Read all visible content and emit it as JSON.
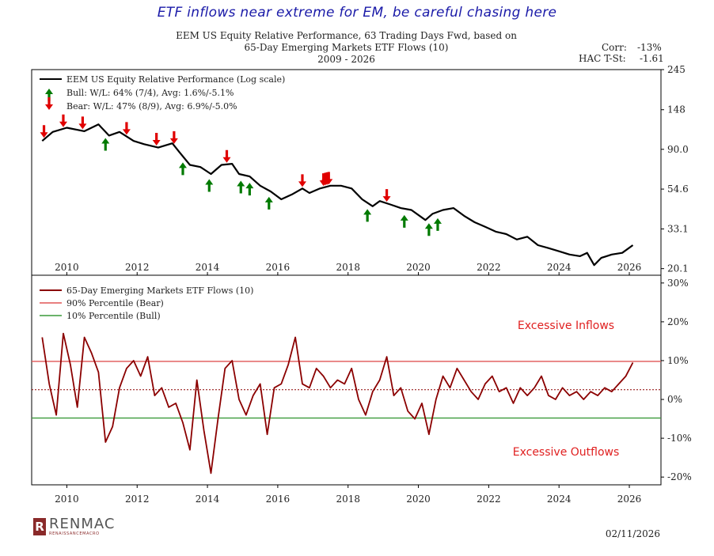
{
  "headline": "ETF inflows near extreme for EM, be careful chasing here",
  "title_line1": "EEM US Equity Relative Performance, 63 Trading Days Fwd, based on",
  "title_line2": "65-Day Emerging Markets ETF Flows (10)",
  "title_line3": "2009 - 2026",
  "corr_label": "Corr:",
  "corr_value": "-13%",
  "hac_label": "HAC T-St:",
  "hac_value": "-1.61",
  "logo": {
    "mark": "R",
    "name": "RENMAC",
    "sub": "RENAISSANCEMACRO"
  },
  "date": "02/11/2026",
  "colors": {
    "price": "#000000",
    "flows": "#8b0000",
    "bear": "#e05555",
    "bull": "#3a9a3a",
    "bear_arrow": "#e00000",
    "bull_arrow": "#007a00",
    "annotation": "#e02020",
    "median": "#8b0000"
  },
  "chart_data": [
    {
      "type": "line",
      "panel": "top",
      "scale": "log",
      "xlim": [
        2009.0,
        2026.9
      ],
      "ylim": [
        18.5,
        245
      ],
      "y_ticks": [
        20.1,
        33.1,
        54.6,
        90.0,
        148,
        245
      ],
      "y_tick_labels": [
        "20.1",
        "33.1",
        "54.6",
        "90.0",
        "148",
        "245"
      ],
      "x_ticks": [
        2010,
        2012,
        2014,
        2016,
        2018,
        2020,
        2022,
        2024,
        2026
      ],
      "x_tick_labels": [
        "2010",
        "2012",
        "2014",
        "2016",
        "2018",
        "2020",
        "2022",
        "2024",
        "2026"
      ],
      "legend": [
        "EEM US Equity Relative Performance (Log scale)",
        "Bull:  W/L: 64% (7/4), Avg: 1.6%/-5.1%",
        "Bear:  W/L: 47% (8/9), Avg: 6.9%/-5.0%"
      ],
      "series": [
        {
          "name": "EEM US Equity Relative Performance (Log scale)",
          "x": [
            2009.3,
            2009.6,
            2010.0,
            2010.5,
            2010.9,
            2011.2,
            2011.5,
            2011.9,
            2012.2,
            2012.6,
            2013.0,
            2013.2,
            2013.5,
            2013.8,
            2014.1,
            2014.4,
            2014.7,
            2014.9,
            2015.2,
            2015.5,
            2015.8,
            2016.1,
            2016.4,
            2016.7,
            2016.9,
            2017.2,
            2017.5,
            2017.8,
            2018.1,
            2018.4,
            2018.7,
            2018.9,
            2019.2,
            2019.5,
            2019.8,
            2020.2,
            2020.4,
            2020.7,
            2021.0,
            2021.3,
            2021.6,
            2021.9,
            2022.2,
            2022.5,
            2022.8,
            2023.1,
            2023.4,
            2023.7,
            2024.0,
            2024.3,
            2024.6,
            2024.8,
            2025.0,
            2025.2,
            2025.5,
            2025.8,
            2026.1
          ],
          "values": [
            100,
            112,
            118,
            113,
            123,
            107,
            112,
            100,
            96,
            92,
            97,
            87,
            74,
            72,
            66,
            74,
            75,
            66,
            64,
            57,
            53,
            48,
            51,
            55,
            52,
            55,
            57,
            57,
            55,
            48,
            44,
            47,
            45,
            43,
            42,
            37,
            40,
            42,
            43,
            39,
            36,
            34,
            32,
            31,
            29,
            30,
            27,
            26,
            25,
            24,
            23.5,
            24.5,
            21,
            23,
            24,
            24.5,
            27
          ]
        }
      ],
      "bear_signal_x": [
        2009.35,
        2009.9,
        2010.45,
        2011.7,
        2012.55,
        2013.05,
        2014.55,
        2016.7,
        2017.3,
        2017.35,
        2017.4,
        2017.45,
        2019.1
      ],
      "bull_signal_x": [
        2011.1,
        2013.3,
        2014.05,
        2014.95,
        2015.2,
        2015.75,
        2018.55,
        2019.6,
        2020.3,
        2020.55
      ]
    },
    {
      "type": "line",
      "panel": "bottom",
      "xlim": [
        2009.0,
        2026.9
      ],
      "ylim": [
        -22,
        32
      ],
      "y_ticks": [
        -20,
        -10,
        0,
        10,
        20,
        30
      ],
      "y_tick_labels": [
        "-20%",
        "-10%",
        "0%",
        "10%",
        "20%",
        "30%"
      ],
      "x_ticks": [
        2010,
        2012,
        2014,
        2016,
        2018,
        2020,
        2022,
        2024,
        2026
      ],
      "x_tick_labels": [
        "2010",
        "2012",
        "2014",
        "2016",
        "2018",
        "2020",
        "2022",
        "2024",
        "2026"
      ],
      "legend": [
        "65-Day Emerging Markets ETF Flows (10)",
        "90% Percentile (Bear)",
        "10% Percentile (Bull)"
      ],
      "bear_threshold": 9.8,
      "bull_threshold": -4.8,
      "median": 2.5,
      "annotations": [
        "Excessive Inflows",
        "Excessive Outflows"
      ],
      "series": [
        {
          "name": "65-Day Emerging Markets ETF Flows (10)",
          "x": [
            2009.3,
            2009.5,
            2009.7,
            2009.9,
            2010.1,
            2010.3,
            2010.5,
            2010.7,
            2010.9,
            2011.1,
            2011.3,
            2011.5,
            2011.7,
            2011.9,
            2012.1,
            2012.3,
            2012.5,
            2012.7,
            2012.9,
            2013.1,
            2013.3,
            2013.5,
            2013.7,
            2013.9,
            2014.1,
            2014.3,
            2014.5,
            2014.7,
            2014.9,
            2015.1,
            2015.3,
            2015.5,
            2015.7,
            2015.9,
            2016.1,
            2016.3,
            2016.5,
            2016.7,
            2016.9,
            2017.1,
            2017.3,
            2017.5,
            2017.7,
            2017.9,
            2018.1,
            2018.3,
            2018.5,
            2018.7,
            2018.9,
            2019.1,
            2019.3,
            2019.5,
            2019.7,
            2019.9,
            2020.1,
            2020.3,
            2020.5,
            2020.7,
            2020.9,
            2021.1,
            2021.3,
            2021.5,
            2021.7,
            2021.9,
            2022.1,
            2022.3,
            2022.5,
            2022.7,
            2022.9,
            2023.1,
            2023.3,
            2023.5,
            2023.7,
            2023.9,
            2024.1,
            2024.3,
            2024.5,
            2024.7,
            2024.9,
            2025.1,
            2025.3,
            2025.5,
            2025.7,
            2025.9,
            2026.1
          ],
          "values": [
            16,
            4,
            -4,
            17,
            9,
            -2,
            16,
            12,
            7,
            -11,
            -7,
            3,
            8,
            10,
            6,
            11,
            1,
            3,
            -2,
            -1,
            -6,
            -13,
            5,
            -8,
            -19,
            -5,
            8,
            10,
            0,
            -4,
            1,
            4,
            -9,
            3,
            4,
            9,
            16,
            4,
            3,
            8,
            6,
            3,
            5,
            4,
            8,
            0,
            -4,
            2,
            5,
            11,
            1,
            3,
            -3,
            -5,
            -1,
            -9,
            0,
            6,
            3,
            8,
            5,
            2,
            0,
            4,
            6,
            2,
            3,
            -1,
            3,
            1,
            3,
            6,
            1,
            0,
            3,
            1,
            2,
            0,
            2,
            1,
            3,
            2,
            4,
            6,
            9.5
          ]
        }
      ]
    }
  ]
}
